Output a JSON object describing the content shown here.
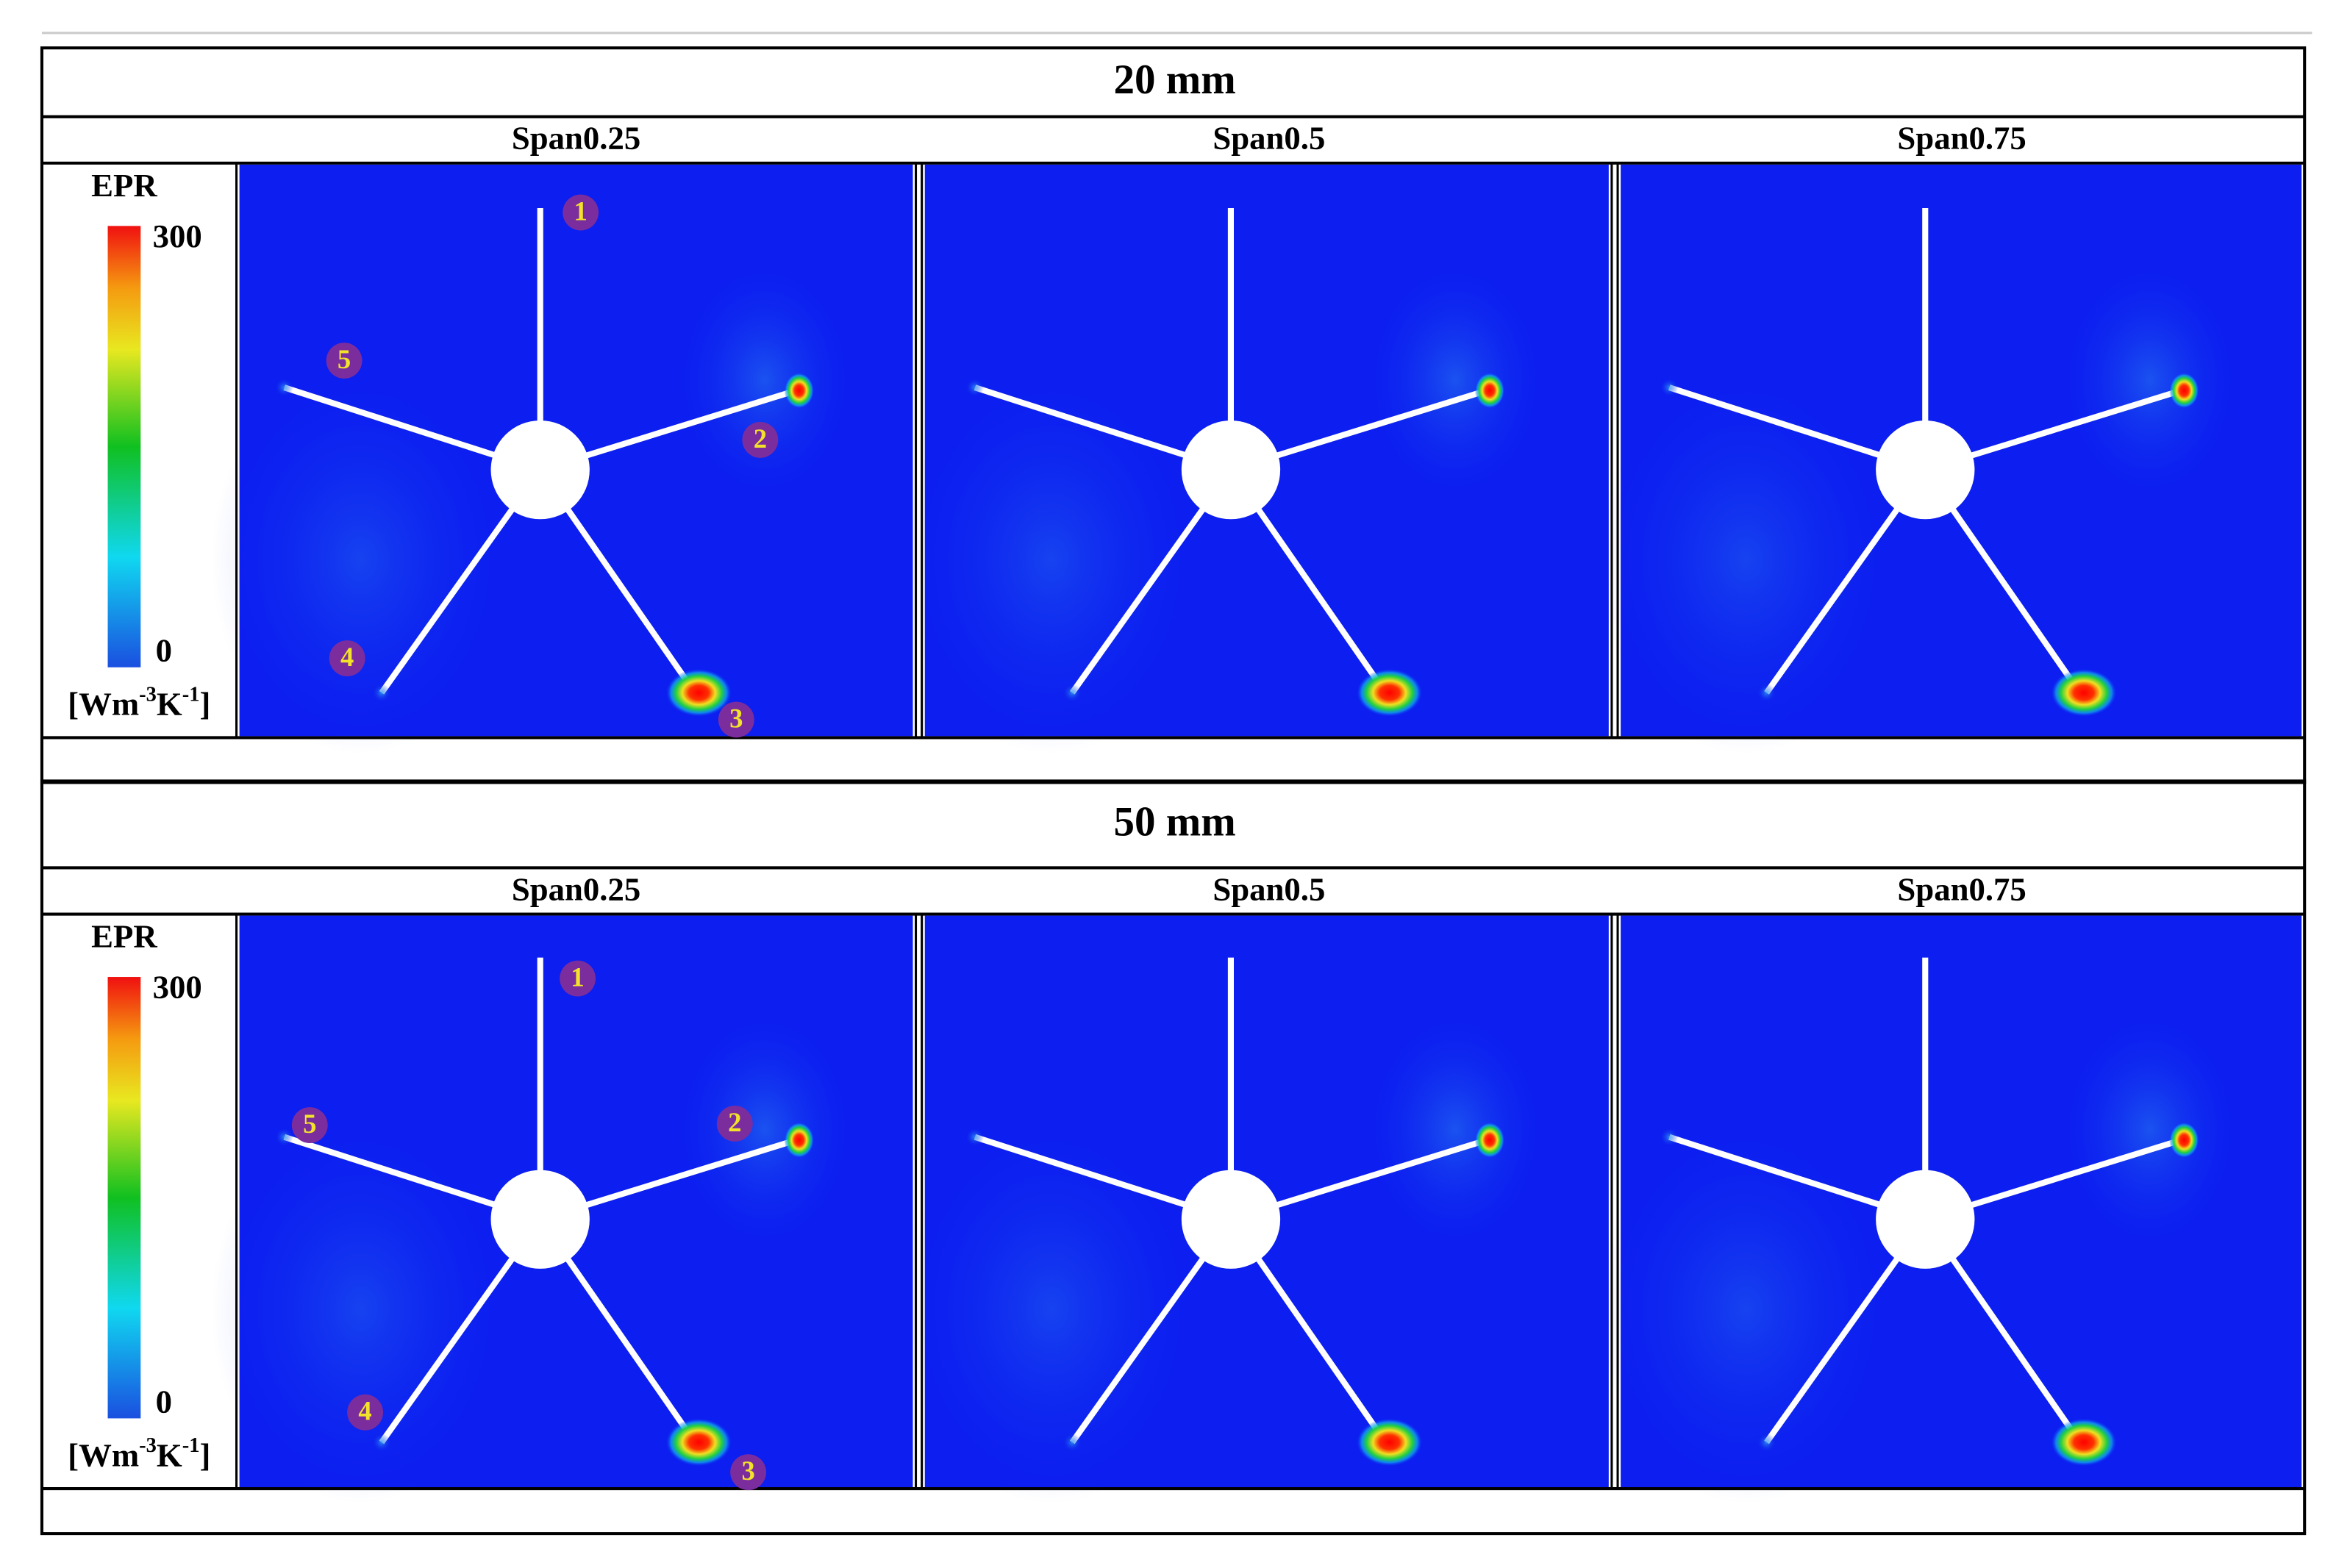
{
  "figure": {
    "rows": [
      {
        "title": "20 mm",
        "columns": [
          "Span0.25",
          "Span0.5",
          "Span0.75"
        ],
        "colorbar": {
          "label": "EPR",
          "max": 300,
          "min": 0,
          "unit": [
            "[Wm",
            "-3",
            "K",
            "-1",
            "]"
          ]
        },
        "blade_labels": [
          "1",
          "2",
          "3",
          "4",
          "5"
        ]
      },
      {
        "title": "50 mm",
        "columns": [
          "Span0.25",
          "Span0.5",
          "Span0.75"
        ],
        "colorbar": {
          "label": "EPR",
          "max": 300,
          "min": 0,
          "unit": [
            "[Wm",
            "-3",
            "K",
            "-1",
            "]"
          ]
        },
        "blade_labels": [
          "1",
          "2",
          "3",
          "4",
          "5"
        ]
      }
    ]
  }
}
